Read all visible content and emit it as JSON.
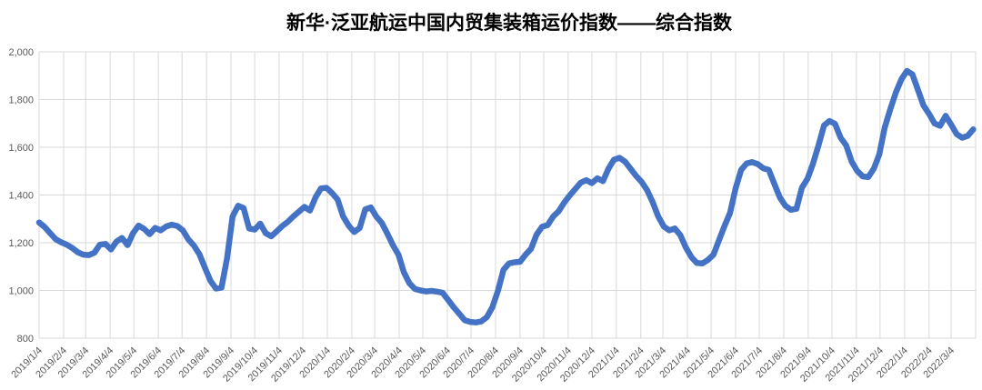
{
  "chart": {
    "title": "新华·泛亚航运中国内贸集装箱运价指数——综合指数"
  },
  "chart_data": {
    "type": "line",
    "title": "新华·泛亚航运中国内贸集装箱运价指数——综合指数",
    "series_name": "综合指数",
    "legend": "none",
    "grid": "both",
    "colors": {
      "line": "#4472C4",
      "gridline": "#D9D9D9",
      "axis_text": "#595959",
      "title_text": "#000000",
      "background": "#FFFFFF"
    },
    "ylim": [
      800,
      2000
    ],
    "y_ticks": [
      {
        "value": 800,
        "label": "800"
      },
      {
        "value": 1000,
        "label": "1,000"
      },
      {
        "value": 1200,
        "label": "1,200"
      },
      {
        "value": 1400,
        "label": "1,400"
      },
      {
        "value": 1600,
        "label": "1,600"
      },
      {
        "value": 1800,
        "label": "1,800"
      },
      {
        "value": 2000,
        "label": "2,000"
      }
    ],
    "xlim": [
      "2019-01-04",
      "2022-04-04"
    ],
    "x_ticks": [
      {
        "date": "2019-01-04",
        "label": "2019/1/4"
      },
      {
        "date": "2019-02-04",
        "label": "2019/2/4"
      },
      {
        "date": "2019-03-04",
        "label": "2019/3/4"
      },
      {
        "date": "2019-04-04",
        "label": "2019/4/4"
      },
      {
        "date": "2019-05-04",
        "label": "2019/5/4"
      },
      {
        "date": "2019-06-04",
        "label": "2019/6/4"
      },
      {
        "date": "2019-07-04",
        "label": "2019/7/4"
      },
      {
        "date": "2019-08-04",
        "label": "2019/8/4"
      },
      {
        "date": "2019-09-04",
        "label": "2019/9/4"
      },
      {
        "date": "2019-10-04",
        "label": "2019/10/4"
      },
      {
        "date": "2019-11-04",
        "label": "2019/11/4"
      },
      {
        "date": "2019-12-04",
        "label": "2019/12/4"
      },
      {
        "date": "2020-01-04",
        "label": "2020/1/4"
      },
      {
        "date": "2020-02-04",
        "label": "2020/2/4"
      },
      {
        "date": "2020-03-04",
        "label": "2020/3/4"
      },
      {
        "date": "2020-04-04",
        "label": "2020/4/4"
      },
      {
        "date": "2020-05-04",
        "label": "2020/5/4"
      },
      {
        "date": "2020-06-04",
        "label": "2020/6/4"
      },
      {
        "date": "2020-07-04",
        "label": "2020/7/4"
      },
      {
        "date": "2020-08-04",
        "label": "2020/8/4"
      },
      {
        "date": "2020-09-04",
        "label": "2020/9/4"
      },
      {
        "date": "2020-10-04",
        "label": "2020/10/4"
      },
      {
        "date": "2020-11-04",
        "label": "2020/11/4"
      },
      {
        "date": "2020-12-04",
        "label": "2020/12/4"
      },
      {
        "date": "2021-01-04",
        "label": "2021/1/4"
      },
      {
        "date": "2021-02-04",
        "label": "2021/2/4"
      },
      {
        "date": "2021-03-04",
        "label": "2021/3/4"
      },
      {
        "date": "2021-04-04",
        "label": "2021/4/4"
      },
      {
        "date": "2021-05-04",
        "label": "2021/5/4"
      },
      {
        "date": "2021-06-04",
        "label": "2021/6/4"
      },
      {
        "date": "2021-07-04",
        "label": "2021/7/4"
      },
      {
        "date": "2021-08-04",
        "label": "2021/8/4"
      },
      {
        "date": "2021-09-04",
        "label": "2021/9/4"
      },
      {
        "date": "2021-10-04",
        "label": "2021/10/4"
      },
      {
        "date": "2021-11-04",
        "label": "2021/11/4"
      },
      {
        "date": "2021-12-04",
        "label": "2021/12/4"
      },
      {
        "date": "2022-01-04",
        "label": "2022/1/4"
      },
      {
        "date": "2022-02-04",
        "label": "2022/2/4"
      },
      {
        "date": "2022-03-04",
        "label": "2022/3/4"
      }
    ],
    "x": [
      "2019-01-04",
      "2019-01-11",
      "2019-01-18",
      "2019-01-25",
      "2019-02-01",
      "2019-02-08",
      "2019-02-15",
      "2019-02-22",
      "2019-03-01",
      "2019-03-08",
      "2019-03-15",
      "2019-03-22",
      "2019-03-29",
      "2019-04-05",
      "2019-04-12",
      "2019-04-19",
      "2019-04-26",
      "2019-05-03",
      "2019-05-10",
      "2019-05-17",
      "2019-05-24",
      "2019-05-31",
      "2019-06-07",
      "2019-06-14",
      "2019-06-21",
      "2019-06-28",
      "2019-07-05",
      "2019-07-12",
      "2019-07-19",
      "2019-07-26",
      "2019-08-02",
      "2019-08-09",
      "2019-08-16",
      "2019-08-23",
      "2019-08-30",
      "2019-09-06",
      "2019-09-13",
      "2019-09-20",
      "2019-09-27",
      "2019-10-04",
      "2019-10-11",
      "2019-10-18",
      "2019-10-25",
      "2019-11-01",
      "2019-11-08",
      "2019-11-15",
      "2019-11-22",
      "2019-11-29",
      "2019-12-06",
      "2019-12-13",
      "2019-12-20",
      "2019-12-27",
      "2020-01-03",
      "2020-01-10",
      "2020-01-17",
      "2020-01-24",
      "2020-01-31",
      "2020-02-07",
      "2020-02-14",
      "2020-02-21",
      "2020-02-28",
      "2020-03-06",
      "2020-03-13",
      "2020-03-20",
      "2020-03-27",
      "2020-04-03",
      "2020-04-10",
      "2020-04-17",
      "2020-04-24",
      "2020-05-01",
      "2020-05-08",
      "2020-05-15",
      "2020-05-22",
      "2020-05-29",
      "2020-06-05",
      "2020-06-12",
      "2020-06-19",
      "2020-06-26",
      "2020-07-03",
      "2020-07-10",
      "2020-07-17",
      "2020-07-24",
      "2020-07-31",
      "2020-08-07",
      "2020-08-14",
      "2020-08-21",
      "2020-08-28",
      "2020-09-04",
      "2020-09-11",
      "2020-09-18",
      "2020-09-25",
      "2020-10-02",
      "2020-10-09",
      "2020-10-16",
      "2020-10-23",
      "2020-10-30",
      "2020-11-06",
      "2020-11-13",
      "2020-11-20",
      "2020-11-27",
      "2020-12-04",
      "2020-12-11",
      "2020-12-18",
      "2020-12-25",
      "2021-01-01",
      "2021-01-08",
      "2021-01-15",
      "2021-01-22",
      "2021-01-29",
      "2021-02-05",
      "2021-02-12",
      "2021-02-19",
      "2021-02-26",
      "2021-03-05",
      "2021-03-12",
      "2021-03-19",
      "2021-03-26",
      "2021-04-02",
      "2021-04-09",
      "2021-04-16",
      "2021-04-23",
      "2021-04-30",
      "2021-05-07",
      "2021-05-14",
      "2021-05-21",
      "2021-05-28",
      "2021-06-04",
      "2021-06-11",
      "2021-06-18",
      "2021-06-25",
      "2021-07-02",
      "2021-07-09",
      "2021-07-16",
      "2021-07-23",
      "2021-07-30",
      "2021-08-06",
      "2021-08-13",
      "2021-08-20",
      "2021-08-27",
      "2021-09-03",
      "2021-09-10",
      "2021-09-17",
      "2021-09-24",
      "2021-10-01",
      "2021-10-08",
      "2021-10-15",
      "2021-10-22",
      "2021-10-29",
      "2021-11-05",
      "2021-11-12",
      "2021-11-19",
      "2021-11-26",
      "2021-12-03",
      "2021-12-10",
      "2021-12-17",
      "2021-12-24",
      "2021-12-31",
      "2022-01-07",
      "2022-01-14",
      "2022-01-21",
      "2022-01-28",
      "2022-02-04",
      "2022-02-11",
      "2022-02-18",
      "2022-02-25",
      "2022-03-04",
      "2022-03-11",
      "2022-03-18",
      "2022-03-25",
      "2022-04-01"
    ],
    "values": [
      1285,
      1266,
      1240,
      1215,
      1202,
      1192,
      1178,
      1160,
      1150,
      1148,
      1158,
      1192,
      1195,
      1172,
      1205,
      1220,
      1190,
      1240,
      1272,
      1258,
      1236,
      1262,
      1252,
      1268,
      1276,
      1270,
      1252,
      1214,
      1188,
      1152,
      1095,
      1040,
      1008,
      1012,
      1135,
      1310,
      1355,
      1345,
      1260,
      1255,
      1280,
      1240,
      1227,
      1248,
      1270,
      1288,
      1310,
      1330,
      1350,
      1335,
      1390,
      1428,
      1430,
      1408,
      1381,
      1310,
      1272,
      1245,
      1262,
      1340,
      1348,
      1310,
      1283,
      1238,
      1190,
      1150,
      1076,
      1030,
      1006,
      1000,
      996,
      998,
      995,
      990,
      960,
      930,
      903,
      875,
      868,
      866,
      870,
      888,
      930,
      998,
      1086,
      1113,
      1118,
      1120,
      1150,
      1175,
      1234,
      1267,
      1274,
      1310,
      1332,
      1368,
      1398,
      1425,
      1452,
      1462,
      1450,
      1470,
      1458,
      1510,
      1548,
      1556,
      1540,
      1510,
      1480,
      1455,
      1420,
      1370,
      1310,
      1268,
      1252,
      1260,
      1232,
      1180,
      1140,
      1115,
      1113,
      1128,
      1150,
      1210,
      1270,
      1325,
      1428,
      1505,
      1532,
      1538,
      1530,
      1512,
      1505,
      1448,
      1390,
      1355,
      1338,
      1342,
      1430,
      1468,
      1531,
      1608,
      1692,
      1710,
      1698,
      1640,
      1608,
      1540,
      1501,
      1478,
      1475,
      1510,
      1570,
      1684,
      1760,
      1830,
      1885,
      1920,
      1905,
      1840,
      1775,
      1740,
      1700,
      1690,
      1732,
      1695,
      1655,
      1640,
      1648,
      1675
    ]
  }
}
